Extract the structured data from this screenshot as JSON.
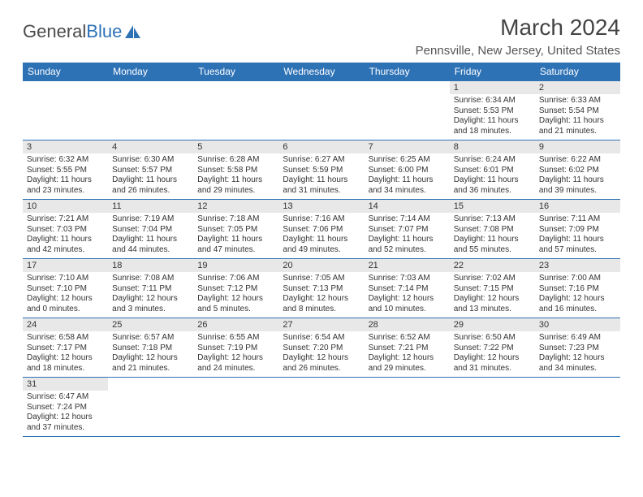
{
  "branding": {
    "word1": "General",
    "word2": "Blue",
    "logo_color": "#2e72b6",
    "text_color": "#4a4a4a"
  },
  "header": {
    "month_title": "March 2024",
    "location": "Pennsville, New Jersey, United States"
  },
  "colors": {
    "header_bg": "#2e72b6",
    "header_text": "#ffffff",
    "border": "#2e72b6",
    "daynum_bg": "#e8e8e8",
    "body_bg": "#ffffff"
  },
  "calendar": {
    "day_headers": [
      "Sunday",
      "Monday",
      "Tuesday",
      "Wednesday",
      "Thursday",
      "Friday",
      "Saturday"
    ],
    "first_weekday_index": 5,
    "days": [
      {
        "n": 1,
        "sunrise": "6:34 AM",
        "sunset": "5:53 PM",
        "daylight": "11 hours and 18 minutes."
      },
      {
        "n": 2,
        "sunrise": "6:33 AM",
        "sunset": "5:54 PM",
        "daylight": "11 hours and 21 minutes."
      },
      {
        "n": 3,
        "sunrise": "6:32 AM",
        "sunset": "5:55 PM",
        "daylight": "11 hours and 23 minutes."
      },
      {
        "n": 4,
        "sunrise": "6:30 AM",
        "sunset": "5:57 PM",
        "daylight": "11 hours and 26 minutes."
      },
      {
        "n": 5,
        "sunrise": "6:28 AM",
        "sunset": "5:58 PM",
        "daylight": "11 hours and 29 minutes."
      },
      {
        "n": 6,
        "sunrise": "6:27 AM",
        "sunset": "5:59 PM",
        "daylight": "11 hours and 31 minutes."
      },
      {
        "n": 7,
        "sunrise": "6:25 AM",
        "sunset": "6:00 PM",
        "daylight": "11 hours and 34 minutes."
      },
      {
        "n": 8,
        "sunrise": "6:24 AM",
        "sunset": "6:01 PM",
        "daylight": "11 hours and 36 minutes."
      },
      {
        "n": 9,
        "sunrise": "6:22 AM",
        "sunset": "6:02 PM",
        "daylight": "11 hours and 39 minutes."
      },
      {
        "n": 10,
        "sunrise": "7:21 AM",
        "sunset": "7:03 PM",
        "daylight": "11 hours and 42 minutes."
      },
      {
        "n": 11,
        "sunrise": "7:19 AM",
        "sunset": "7:04 PM",
        "daylight": "11 hours and 44 minutes."
      },
      {
        "n": 12,
        "sunrise": "7:18 AM",
        "sunset": "7:05 PM",
        "daylight": "11 hours and 47 minutes."
      },
      {
        "n": 13,
        "sunrise": "7:16 AM",
        "sunset": "7:06 PM",
        "daylight": "11 hours and 49 minutes."
      },
      {
        "n": 14,
        "sunrise": "7:14 AM",
        "sunset": "7:07 PM",
        "daylight": "11 hours and 52 minutes."
      },
      {
        "n": 15,
        "sunrise": "7:13 AM",
        "sunset": "7:08 PM",
        "daylight": "11 hours and 55 minutes."
      },
      {
        "n": 16,
        "sunrise": "7:11 AM",
        "sunset": "7:09 PM",
        "daylight": "11 hours and 57 minutes."
      },
      {
        "n": 17,
        "sunrise": "7:10 AM",
        "sunset": "7:10 PM",
        "daylight": "12 hours and 0 minutes."
      },
      {
        "n": 18,
        "sunrise": "7:08 AM",
        "sunset": "7:11 PM",
        "daylight": "12 hours and 3 minutes."
      },
      {
        "n": 19,
        "sunrise": "7:06 AM",
        "sunset": "7:12 PM",
        "daylight": "12 hours and 5 minutes."
      },
      {
        "n": 20,
        "sunrise": "7:05 AM",
        "sunset": "7:13 PM",
        "daylight": "12 hours and 8 minutes."
      },
      {
        "n": 21,
        "sunrise": "7:03 AM",
        "sunset": "7:14 PM",
        "daylight": "12 hours and 10 minutes."
      },
      {
        "n": 22,
        "sunrise": "7:02 AM",
        "sunset": "7:15 PM",
        "daylight": "12 hours and 13 minutes."
      },
      {
        "n": 23,
        "sunrise": "7:00 AM",
        "sunset": "7:16 PM",
        "daylight": "12 hours and 16 minutes."
      },
      {
        "n": 24,
        "sunrise": "6:58 AM",
        "sunset": "7:17 PM",
        "daylight": "12 hours and 18 minutes."
      },
      {
        "n": 25,
        "sunrise": "6:57 AM",
        "sunset": "7:18 PM",
        "daylight": "12 hours and 21 minutes."
      },
      {
        "n": 26,
        "sunrise": "6:55 AM",
        "sunset": "7:19 PM",
        "daylight": "12 hours and 24 minutes."
      },
      {
        "n": 27,
        "sunrise": "6:54 AM",
        "sunset": "7:20 PM",
        "daylight": "12 hours and 26 minutes."
      },
      {
        "n": 28,
        "sunrise": "6:52 AM",
        "sunset": "7:21 PM",
        "daylight": "12 hours and 29 minutes."
      },
      {
        "n": 29,
        "sunrise": "6:50 AM",
        "sunset": "7:22 PM",
        "daylight": "12 hours and 31 minutes."
      },
      {
        "n": 30,
        "sunrise": "6:49 AM",
        "sunset": "7:23 PM",
        "daylight": "12 hours and 34 minutes."
      },
      {
        "n": 31,
        "sunrise": "6:47 AM",
        "sunset": "7:24 PM",
        "daylight": "12 hours and 37 minutes."
      }
    ],
    "labels": {
      "sunrise_prefix": "Sunrise: ",
      "sunset_prefix": "Sunset: ",
      "daylight_prefix": "Daylight: "
    }
  }
}
